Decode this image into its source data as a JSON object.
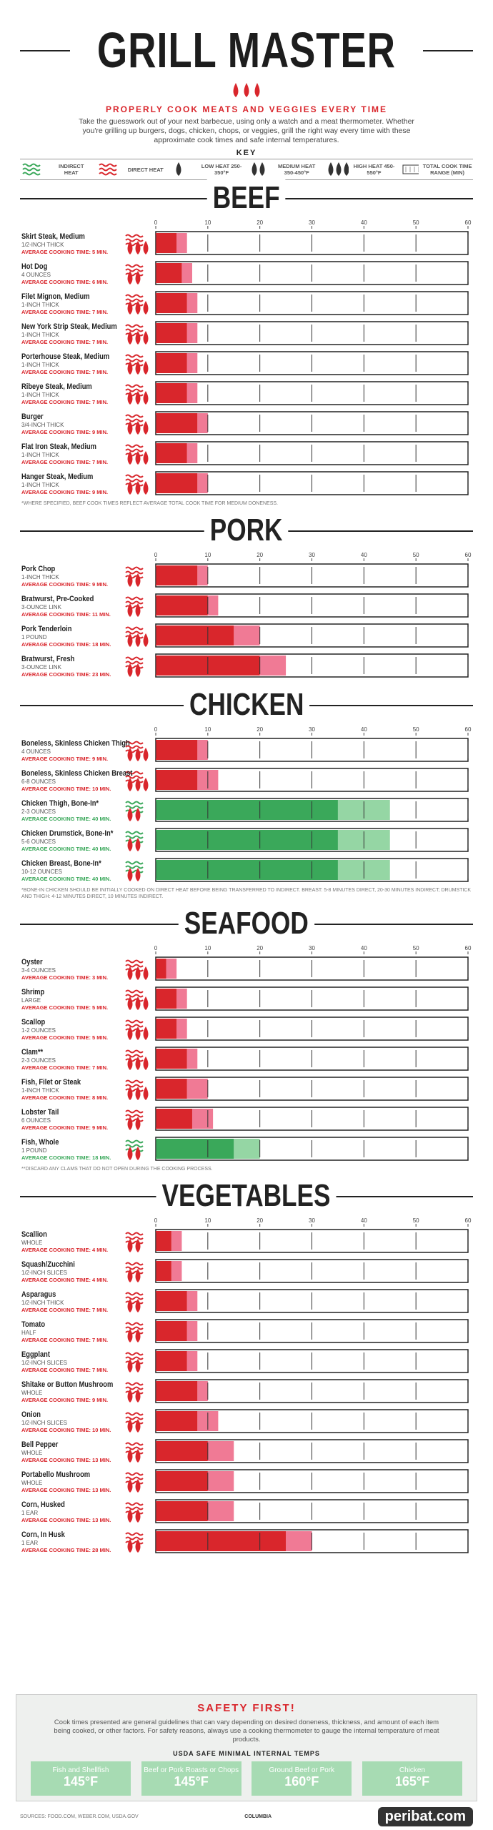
{
  "header": {
    "title": "GRILL MASTER",
    "subtitle": "PROPERLY COOK MEATS AND VEGGIES EVERY TIME",
    "intro": "Take the guesswork out of your next barbecue, using only a watch and a meat thermometer. Whether you're grilling up burgers, dogs, chicken, chops, or veggies, grill the right way every time with these approximate cook times and safe internal temperatures."
  },
  "key": {
    "title": "KEY",
    "items": [
      {
        "label": "INDIRECT HEAT",
        "icon": "indirect"
      },
      {
        "label": "DIRECT HEAT",
        "icon": "direct"
      },
      {
        "label": "LOW HEAT 250-350°F",
        "icon": "flames1"
      },
      {
        "label": "MEDIUM HEAT 350-450°F",
        "icon": "flames2"
      },
      {
        "label": "HIGH HEAT 450-550°F",
        "icon": "flames3"
      },
      {
        "label": "TOTAL COOK TIME RANGE (MIN)",
        "icon": "range"
      }
    ]
  },
  "sections": [
    {
      "title": "BEEF",
      "xlim": [
        0,
        60
      ],
      "xticks": [
        0,
        10,
        20,
        30,
        40,
        50,
        60
      ],
      "footnote": "*WHERE SPECIFIED, BEEF COOK TIMES REFLECT AVERAGE TOTAL COOK TIME FOR MEDIUM DONENESS.",
      "items": [
        {
          "name": "Skirt Steak, Medium",
          "size": "1/2-INCH THICK",
          "avg": "AVERAGE COOKING TIME: 5 MIN.",
          "heat": "direct",
          "flames": 3,
          "min": 4,
          "max": 6
        },
        {
          "name": "Hot Dog",
          "size": "4 OUNCES",
          "avg": "AVERAGE COOKING TIME: 6 MIN.",
          "heat": "direct",
          "flames": 2,
          "min": 5,
          "max": 7
        },
        {
          "name": "Filet Mignon, Medium",
          "size": "1-INCH THICK",
          "avg": "AVERAGE COOKING TIME: 7 MIN.",
          "heat": "direct",
          "flames": 3,
          "min": 6,
          "max": 8
        },
        {
          "name": "New York Strip Steak, Medium",
          "size": "1-INCH THICK",
          "avg": "AVERAGE COOKING TIME: 7 MIN.",
          "heat": "direct",
          "flames": 3,
          "min": 6,
          "max": 8
        },
        {
          "name": "Porterhouse Steak, Medium",
          "size": "1-INCH THICK",
          "avg": "AVERAGE COOKING TIME: 7 MIN.",
          "heat": "direct",
          "flames": 3,
          "min": 6,
          "max": 8
        },
        {
          "name": "Ribeye Steak, Medium",
          "size": "1-INCH THICK",
          "avg": "AVERAGE COOKING TIME: 7 MIN.",
          "heat": "direct",
          "flames": 3,
          "min": 6,
          "max": 8
        },
        {
          "name": "Burger",
          "size": "3/4-INCH THICK",
          "avg": "AVERAGE COOKING TIME: 9 MIN.",
          "heat": "direct",
          "flames": 3,
          "min": 8,
          "max": 10
        },
        {
          "name": "Flat Iron Steak, Medium",
          "size": "1-INCH THICK",
          "avg": "AVERAGE COOKING TIME: 7 MIN.",
          "heat": "direct",
          "flames": 3,
          "min": 6,
          "max": 8
        },
        {
          "name": "Hanger Steak, Medium",
          "size": "1-INCH THICK",
          "avg": "AVERAGE COOKING TIME: 9 MIN.",
          "heat": "direct",
          "flames": 3,
          "min": 8,
          "max": 10
        }
      ]
    },
    {
      "title": "PORK",
      "xlim": [
        0,
        60
      ],
      "xticks": [
        0,
        10,
        20,
        30,
        40,
        50,
        60
      ],
      "items": [
        {
          "name": "Pork Chop",
          "size": "1-INCH THICK",
          "avg": "AVERAGE COOKING TIME: 9 MIN.",
          "heat": "direct",
          "flames": 2,
          "min": 8,
          "max": 10
        },
        {
          "name": "Bratwurst, Pre-Cooked",
          "size": "3-OUNCE LINK",
          "avg": "AVERAGE COOKING TIME: 11 MIN.",
          "heat": "direct",
          "flames": 2,
          "min": 10,
          "max": 12
        },
        {
          "name": "Pork Tenderloin",
          "size": "1 POUND",
          "avg": "AVERAGE COOKING TIME: 18 MIN.",
          "heat": "direct",
          "flames": 3,
          "min": 15,
          "max": 20
        },
        {
          "name": "Bratwurst, Fresh",
          "size": "3-OUNCE LINK",
          "avg": "AVERAGE COOKING TIME: 23 MIN.",
          "heat": "direct",
          "flames": 2,
          "min": 20,
          "max": 25
        }
      ]
    },
    {
      "title": "CHICKEN",
      "xlim": [
        0,
        60
      ],
      "xticks": [
        0,
        10,
        20,
        30,
        40,
        50,
        60
      ],
      "footnote": "*BONE-IN CHICKEN SHOULD BE INITIALLY COOKED ON DIRECT HEAT BEFORE BEING TRANSFERRED TO INDIRECT. BREAST: 5-8 MINUTES DIRECT, 20-30 MINUTES INDIRECT; DRUMSTICK AND THIGH: 4-12 MINUTES DIRECT, 10 MINUTES INDIRECT.",
      "items": [
        {
          "name": "Boneless, Skinless Chicken Thigh",
          "size": "4 OUNCES",
          "avg": "AVERAGE COOKING TIME: 9 MIN.",
          "heat": "direct",
          "flames": 3,
          "min": 8,
          "max": 10
        },
        {
          "name": "Boneless, Skinless Chicken Breast",
          "size": "6-8 OUNCES",
          "avg": "AVERAGE COOKING TIME: 10 MIN.",
          "heat": "direct",
          "flames": 3,
          "min": 8,
          "max": 12
        },
        {
          "name": "Chicken Thigh, Bone-In*",
          "size": "2-3 OUNCES",
          "avg": "AVERAGE COOKING TIME: 40 MIN.",
          "heat": "indirect",
          "flames": 2,
          "min": 35,
          "max": 45
        },
        {
          "name": "Chicken Drumstick, Bone-In*",
          "size": "5-6 OUNCES",
          "avg": "AVERAGE COOKING TIME: 40 MIN.",
          "heat": "indirect",
          "flames": 2,
          "min": 35,
          "max": 45
        },
        {
          "name": "Chicken Breast, Bone-In*",
          "size": "10-12 OUNCES",
          "avg": "AVERAGE COOKING TIME: 40 MIN.",
          "heat": "indirect",
          "flames": 2,
          "min": 35,
          "max": 45
        }
      ]
    },
    {
      "title": "SEAFOOD",
      "xlim": [
        0,
        60
      ],
      "xticks": [
        0,
        10,
        20,
        30,
        40,
        50,
        60
      ],
      "footnote": "**DISCARD ANY CLAMS THAT DO NOT OPEN DURING THE COOKING PROCESS.",
      "items": [
        {
          "name": "Oyster",
          "size": "3-4 OUNCES",
          "avg": "AVERAGE COOKING TIME: 3 MIN.",
          "heat": "direct",
          "flames": 3,
          "min": 2,
          "max": 4
        },
        {
          "name": "Shrimp",
          "size": "LARGE",
          "avg": "AVERAGE COOKING TIME: 5 MIN.",
          "heat": "direct",
          "flames": 3,
          "min": 4,
          "max": 6
        },
        {
          "name": "Scallop",
          "size": "1-2 OUNCES",
          "avg": "AVERAGE COOKING TIME: 5 MIN.",
          "heat": "direct",
          "flames": 3,
          "min": 4,
          "max": 6
        },
        {
          "name": "Clam**",
          "size": "2-3 OUNCES",
          "avg": "AVERAGE COOKING TIME: 7 MIN.",
          "heat": "direct",
          "flames": 3,
          "min": 6,
          "max": 8
        },
        {
          "name": "Fish, Filet or Steak",
          "size": "1-INCH THICK",
          "avg": "AVERAGE COOKING TIME: 8 MIN.",
          "heat": "direct",
          "flames": 3,
          "min": 6,
          "max": 10
        },
        {
          "name": "Lobster Tail",
          "size": "6 OUNCES",
          "avg": "AVERAGE COOKING TIME: 9 MIN.",
          "heat": "direct",
          "flames": 2,
          "min": 7,
          "max": 11
        },
        {
          "name": "Fish, Whole",
          "size": "1 POUND",
          "avg": "AVERAGE COOKING TIME: 18 MIN.",
          "heat": "indirect",
          "flames": 2,
          "min": 15,
          "max": 20
        }
      ]
    },
    {
      "title": "VEGETABLES",
      "xlim": [
        0,
        60
      ],
      "xticks": [
        0,
        10,
        20,
        30,
        40,
        50,
        60
      ],
      "items": [
        {
          "name": "Scallion",
          "size": "WHOLE",
          "avg": "AVERAGE COOKING TIME: 4 MIN.",
          "heat": "direct",
          "flames": 2,
          "min": 3,
          "max": 5
        },
        {
          "name": "Squash/Zucchini",
          "size": "1/2-INCH SLICES",
          "avg": "AVERAGE COOKING TIME: 4 MIN.",
          "heat": "direct",
          "flames": 2,
          "min": 3,
          "max": 5
        },
        {
          "name": "Asparagus",
          "size": "1/2-INCH THICK",
          "avg": "AVERAGE COOKING TIME: 7 MIN.",
          "heat": "direct",
          "flames": 2,
          "min": 6,
          "max": 8
        },
        {
          "name": "Tomato",
          "size": "HALF",
          "avg": "AVERAGE COOKING TIME: 7 MIN.",
          "heat": "direct",
          "flames": 2,
          "min": 6,
          "max": 8
        },
        {
          "name": "Eggplant",
          "size": "1/2-INCH SLICES",
          "avg": "AVERAGE COOKING TIME: 7 MIN.",
          "heat": "direct",
          "flames": 2,
          "min": 6,
          "max": 8
        },
        {
          "name": "Shitake or Button Mushroom",
          "size": "WHOLE",
          "avg": "AVERAGE COOKING TIME: 9 MIN.",
          "heat": "direct",
          "flames": 2,
          "min": 8,
          "max": 10
        },
        {
          "name": "Onion",
          "size": "1/2-INCH SLICES",
          "avg": "AVERAGE COOKING TIME: 10 MIN.",
          "heat": "direct",
          "flames": 2,
          "min": 8,
          "max": 12
        },
        {
          "name": "Bell Pepper",
          "size": "WHOLE",
          "avg": "AVERAGE COOKING TIME: 13 MIN.",
          "heat": "direct",
          "flames": 2,
          "min": 10,
          "max": 15
        },
        {
          "name": "Portabello Mushroom",
          "size": "WHOLE",
          "avg": "AVERAGE COOKING TIME: 13 MIN.",
          "heat": "direct",
          "flames": 2,
          "min": 10,
          "max": 15
        },
        {
          "name": "Corn, Husked",
          "size": "1 EAR",
          "avg": "AVERAGE COOKING TIME: 13 MIN.",
          "heat": "direct",
          "flames": 2,
          "min": 10,
          "max": 15
        },
        {
          "name": "Corn, In Husk",
          "size": "1 EAR",
          "avg": "AVERAGE COOKING TIME: 28 MIN.",
          "heat": "direct",
          "flames": 2,
          "min": 25,
          "max": 30
        }
      ]
    }
  ],
  "safety": {
    "title": "SAFETY FIRST!",
    "text": "Cook times presented are general guidelines that can vary depending on desired doneness, thickness, and amount of each item being cooked, or other factors. For safety reasons, always use a cooking thermometer to gauge the internal temperature of meat products.",
    "temps_title": "USDA SAFE MINIMAL INTERNAL TEMPS",
    "temps": [
      {
        "label": "Fish and Shellfish",
        "temp": "145°F"
      },
      {
        "label": "Beef or Pork Roasts or Chops",
        "temp": "145°F"
      },
      {
        "label": "Ground Beef or Pork",
        "temp": "160°F"
      },
      {
        "label": "Chicken",
        "temp": "165°F"
      }
    ]
  },
  "footer": {
    "sources": "SOURCES: FOOD.COM, WEBER.COM, USDA.GOV",
    "credit": "COLUMBIA",
    "watermark": "peribat.com"
  }
}
